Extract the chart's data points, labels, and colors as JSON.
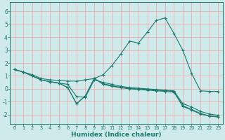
{
  "xlabel": "Humidex (Indice chaleur)",
  "bg_color": "#ceeaea",
  "grid_color": "#f2aaaa",
  "line_color": "#1a7a6e",
  "xlim": [
    -0.5,
    23.5
  ],
  "ylim": [
    -2.7,
    6.7
  ],
  "xticks": [
    0,
    1,
    2,
    3,
    4,
    5,
    6,
    7,
    8,
    9,
    10,
    11,
    12,
    13,
    14,
    15,
    16,
    17,
    18,
    19,
    20,
    21,
    22,
    23
  ],
  "yticks": [
    -2,
    -1,
    0,
    1,
    2,
    3,
    4,
    5,
    6
  ],
  "series": [
    [
      1.5,
      1.3,
      1.1,
      0.8,
      0.7,
      0.65,
      0.6,
      0.6,
      0.7,
      0.8,
      1.1,
      1.8,
      2.7,
      3.7,
      3.55,
      4.4,
      5.3,
      5.5,
      4.3,
      3.0,
      1.2,
      -0.15,
      -0.2,
      -0.2
    ],
    [
      1.5,
      1.3,
      1.0,
      0.7,
      0.55,
      0.45,
      0.35,
      -0.6,
      -0.65,
      0.7,
      0.5,
      0.35,
      0.2,
      0.1,
      0.05,
      0.0,
      -0.05,
      -0.1,
      -0.15,
      -1.15,
      -1.4,
      -1.75,
      -1.95,
      -2.05
    ],
    [
      1.5,
      1.3,
      1.0,
      0.7,
      0.55,
      0.45,
      0.1,
      -1.15,
      -0.55,
      0.8,
      0.4,
      0.25,
      0.12,
      0.05,
      0.0,
      -0.05,
      -0.1,
      -0.15,
      -0.2,
      -1.3,
      -1.6,
      -1.9,
      -2.1,
      -2.15
    ],
    [
      1.5,
      1.3,
      1.0,
      0.7,
      0.55,
      0.45,
      0.1,
      -1.15,
      -0.55,
      0.8,
      0.35,
      0.2,
      0.08,
      0.0,
      -0.05,
      -0.1,
      -0.15,
      -0.2,
      -0.25,
      -1.35,
      -1.65,
      -1.95,
      -2.12,
      -2.18
    ]
  ]
}
